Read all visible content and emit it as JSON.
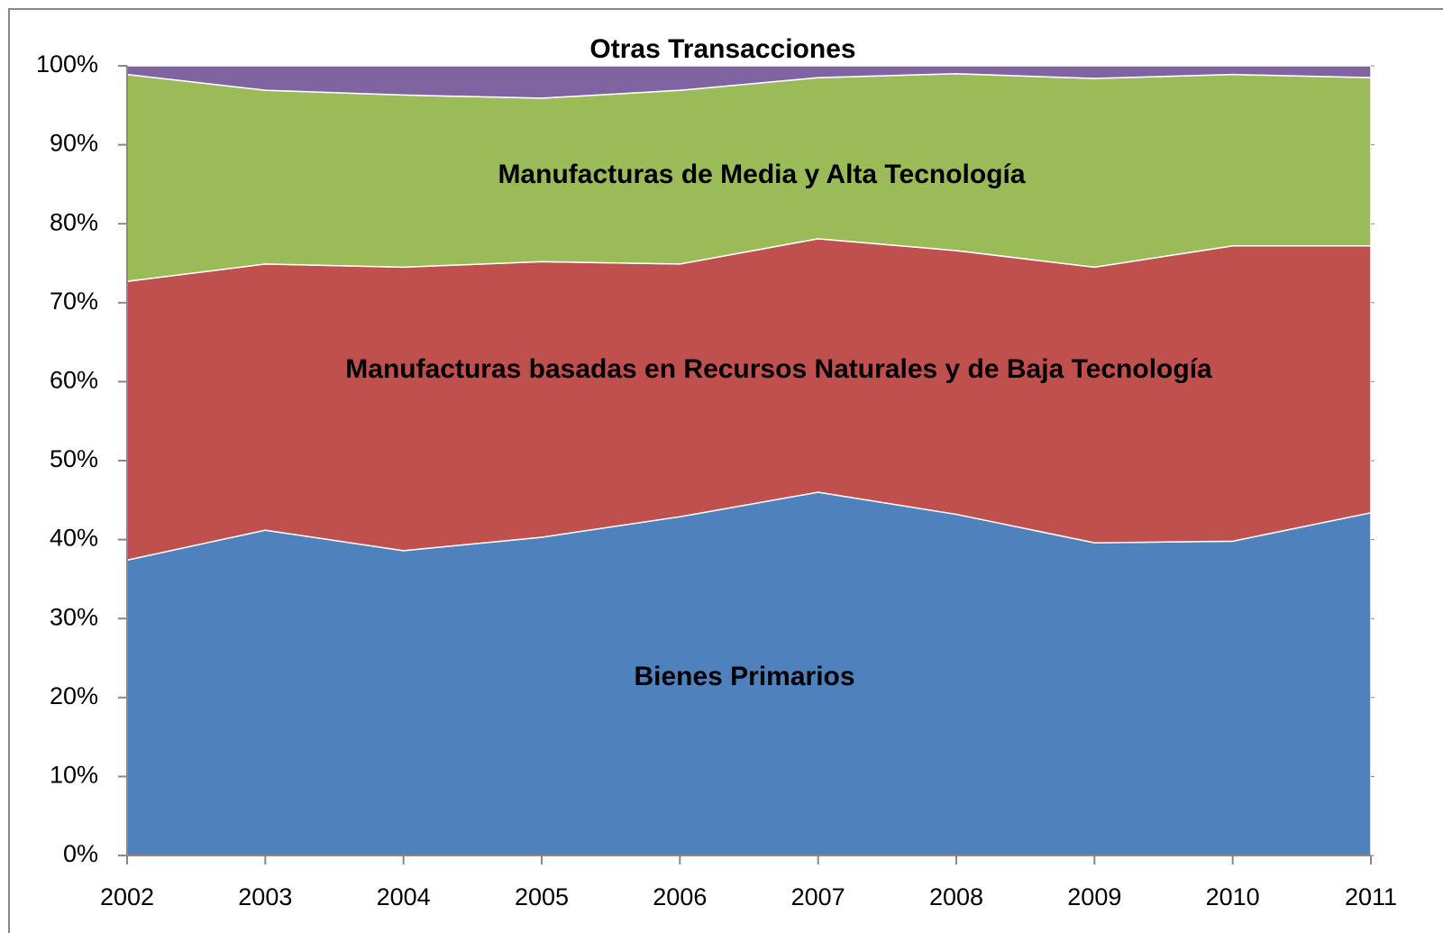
{
  "chart_data": {
    "type": "stacked_area",
    "categories": [
      "2002",
      "2003",
      "2004",
      "2005",
      "2006",
      "2007",
      "2008",
      "2009",
      "2010",
      "2011"
    ],
    "series": [
      {
        "name": "Bienes Primarios",
        "color": "#4f81bd",
        "values": [
          37.4,
          41.2,
          38.6,
          40.3,
          42.9,
          46.0,
          43.2,
          39.6,
          39.8,
          43.4
        ]
      },
      {
        "name": "Manufacturas basadas en Recursos Naturales y de Baja Tecnología",
        "color": "#c0504d",
        "values": [
          35.3,
          33.7,
          35.9,
          34.9,
          32.0,
          32.1,
          33.4,
          34.9,
          37.4,
          33.8
        ]
      },
      {
        "name": "Manufacturas de Media y Alta Tecnología",
        "color": "#9bbb59",
        "values": [
          26.2,
          22.0,
          21.8,
          20.7,
          22.0,
          20.4,
          22.4,
          23.9,
          21.7,
          21.3
        ]
      },
      {
        "name": "Otras Transacciones",
        "color": "#8064a2",
        "values": [
          1.1,
          3.1,
          3.7,
          4.1,
          3.1,
          1.5,
          1.0,
          1.6,
          1.1,
          1.5
        ]
      }
    ],
    "ylim": [
      0,
      100
    ],
    "yticks": [
      {
        "value": 0,
        "label": "0%"
      },
      {
        "value": 10,
        "label": "10%"
      },
      {
        "value": 20,
        "label": "20%"
      },
      {
        "value": 30,
        "label": "30%"
      },
      {
        "value": 40,
        "label": "40%"
      },
      {
        "value": 50,
        "label": "50%"
      },
      {
        "value": 60,
        "label": "60%"
      },
      {
        "value": 70,
        "label": "70%"
      },
      {
        "value": 80,
        "label": "80%"
      },
      {
        "value": 90,
        "label": "90%"
      },
      {
        "value": 100,
        "label": "100%"
      }
    ]
  }
}
